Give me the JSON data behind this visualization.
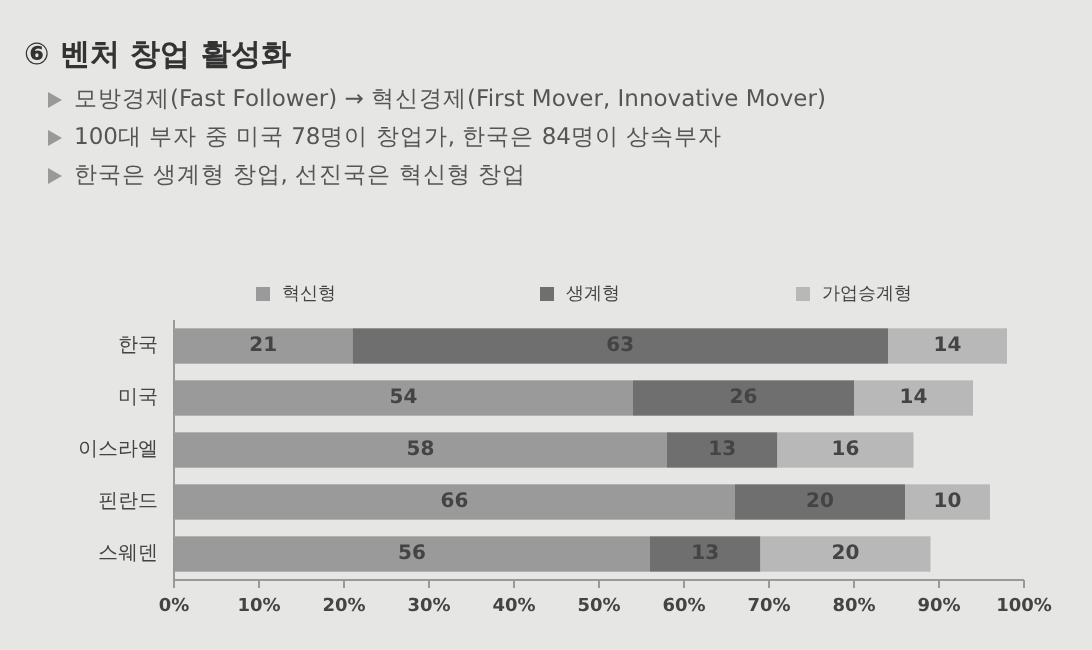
{
  "chart_data": {
    "type": "bar",
    "orientation": "horizontal",
    "stacked": true,
    "title": "⑥ 벤처 창업 활성화",
    "annotations": [
      "모방경제(Fast Follower) → 혁신경제(First Mover, Innovative Mover)",
      "100대 부자 중 미국 78명이 창업가, 한국은 84명이 상속부자",
      "한국은 생계형 창업, 선진국은 혁신형 창업"
    ],
    "categories": [
      "한국",
      "미국",
      "이스라엘",
      "핀란드",
      "스웨덴"
    ],
    "series": [
      {
        "name": "혁신형",
        "color": "#9a9a9a",
        "values": [
          21,
          54,
          58,
          66,
          56
        ]
      },
      {
        "name": "생계형",
        "color": "#6f6f6f",
        "values": [
          63,
          26,
          13,
          20,
          13
        ]
      },
      {
        "name": "가업승계형",
        "color": "#b8b8b8",
        "values": [
          14,
          14,
          16,
          10,
          20
        ]
      }
    ],
    "data_labels": true,
    "xlim": [
      0,
      100
    ],
    "xticks": [
      {
        "value": 0,
        "label": "0%"
      },
      {
        "value": 10,
        "label": "10%"
      },
      {
        "value": 20,
        "label": "20%"
      },
      {
        "value": 30,
        "label": "30%"
      },
      {
        "value": 40,
        "label": "40%"
      },
      {
        "value": 50,
        "label": "50%"
      },
      {
        "value": 60,
        "label": "60%"
      },
      {
        "value": 70,
        "label": "70%"
      },
      {
        "value": 80,
        "label": "80%"
      },
      {
        "value": 90,
        "label": "90%"
      },
      {
        "value": 100,
        "label": "100%"
      }
    ],
    "legend": "top"
  }
}
